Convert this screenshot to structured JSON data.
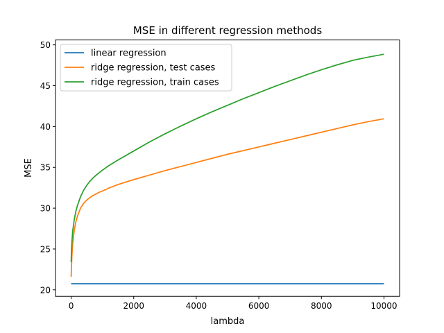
{
  "chart_data": {
    "type": "line",
    "title": "MSE in different regression methods",
    "xlabel": "lambda",
    "ylabel": "MSE",
    "xlim": [
      -500,
      10500
    ],
    "ylim": [
      19.2,
      50.6
    ],
    "xticks": [
      0,
      2000,
      4000,
      6000,
      8000,
      10000
    ],
    "yticks": [
      20,
      25,
      30,
      35,
      40,
      45,
      50
    ],
    "grid": false,
    "legend_position": "top-left",
    "series": [
      {
        "name": "linear regression",
        "color": "#1f77b4",
        "x": [
          0,
          10000
        ],
        "y": [
          20.75,
          20.75
        ]
      },
      {
        "name": "ridge regression, test  cases",
        "color": "#ff7f0e",
        "x": [
          0,
          10,
          25,
          50,
          100,
          150,
          200,
          300,
          400,
          500,
          600,
          700,
          800,
          900,
          1000,
          1200,
          1500,
          2000,
          2500,
          3000,
          3500,
          4000,
          4500,
          5000,
          5500,
          6000,
          6500,
          7000,
          7500,
          8000,
          8500,
          9000,
          9500,
          10000
        ],
        "y": [
          21.6,
          22.8,
          24.2,
          25.7,
          27.3,
          28.3,
          29.0,
          30.0,
          30.6,
          31.0,
          31.3,
          31.55,
          31.75,
          31.95,
          32.1,
          32.45,
          32.9,
          33.5,
          34.05,
          34.6,
          35.1,
          35.6,
          36.1,
          36.6,
          37.05,
          37.5,
          37.95,
          38.4,
          38.85,
          39.3,
          39.75,
          40.2,
          40.6,
          40.95
        ]
      },
      {
        "name": "ridge regression, train cases",
        "color": "#2ca02c",
        "x": [
          0,
          10,
          25,
          50,
          100,
          150,
          200,
          300,
          400,
          500,
          600,
          700,
          800,
          900,
          1000,
          1200,
          1500,
          2000,
          2500,
          3000,
          3500,
          4000,
          4500,
          5000,
          5500,
          6000,
          6500,
          7000,
          7500,
          8000,
          8500,
          9000,
          9500,
          10000
        ],
        "y": [
          23.4,
          24.6,
          25.9,
          27.2,
          28.6,
          29.6,
          30.3,
          31.4,
          32.2,
          32.8,
          33.3,
          33.7,
          34.05,
          34.35,
          34.65,
          35.2,
          35.9,
          37.0,
          38.1,
          39.1,
          40.05,
          40.95,
          41.8,
          42.6,
          43.4,
          44.15,
          44.9,
          45.6,
          46.3,
          46.95,
          47.55,
          48.1,
          48.5,
          48.85
        ]
      }
    ]
  }
}
